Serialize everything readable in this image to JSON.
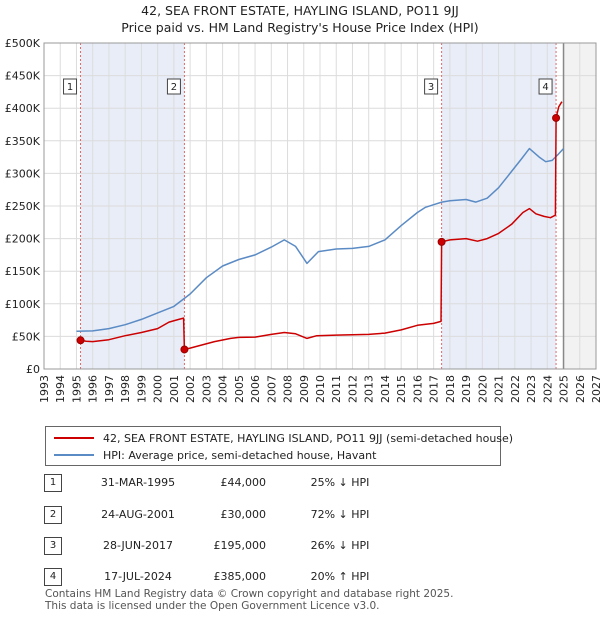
{
  "title_line1": "42, SEA FRONT ESTATE, HAYLING ISLAND, PO11 9JJ",
  "title_line2": "Price paid vs. HM Land Registry's House Price Index (HPI)",
  "legend": {
    "property_label": "42, SEA FRONT ESTATE, HAYLING ISLAND, PO11 9JJ (semi-detached house)",
    "hpi_label": "HPI: Average price, semi-detached house, Havant"
  },
  "colors": {
    "property": "#cc0000",
    "hpi": "#5b8bc4",
    "shade": "#e8edf8",
    "vline": "#e06a6a"
  },
  "sales": [
    {
      "id": "1",
      "date": "31-MAR-1995",
      "price": "£44,000",
      "hpi": "25% ↓ HPI"
    },
    {
      "id": "2",
      "date": "24-AUG-2001",
      "price": "£30,000",
      "hpi": "72% ↓ HPI"
    },
    {
      "id": "3",
      "date": "28-JUN-2017",
      "price": "£195,000",
      "hpi": "26% ↓ HPI"
    },
    {
      "id": "4",
      "date": "17-JUL-2024",
      "price": "£385,000",
      "hpi": "20% ↑ HPI"
    }
  ],
  "footer_line1": "Contains HM Land Registry data © Crown copyright and database right 2025.",
  "footer_line2": "This data is licensed under the Open Government Licence v3.0.",
  "chart_data": {
    "type": "line",
    "title": "42, SEA FRONT ESTATE, HAYLING ISLAND, PO11 9JJ — Price paid vs. HM Land Registry's House Price Index (HPI)",
    "xlim": [
      1993,
      2027
    ],
    "ylim": [
      0,
      500000
    ],
    "x_ticks": [
      1993,
      1994,
      1995,
      1996,
      1997,
      1998,
      1999,
      2000,
      2001,
      2002,
      2003,
      2004,
      2005,
      2006,
      2007,
      2008,
      2009,
      2010,
      2011,
      2012,
      2013,
      2014,
      2015,
      2016,
      2017,
      2018,
      2019,
      2020,
      2021,
      2022,
      2023,
      2024,
      2025,
      2026,
      2027
    ],
    "y_ticks": [
      {
        "value": 0,
        "label": "£0"
      },
      {
        "value": 50000,
        "label": "£50K"
      },
      {
        "value": 100000,
        "label": "£100K"
      },
      {
        "value": 150000,
        "label": "£150K"
      },
      {
        "value": 200000,
        "label": "£200K"
      },
      {
        "value": 250000,
        "label": "£250K"
      },
      {
        "value": 300000,
        "label": "£300K"
      },
      {
        "value": 350000,
        "label": "£350K"
      },
      {
        "value": 400000,
        "label": "£400K"
      },
      {
        "value": 450000,
        "label": "£450K"
      },
      {
        "value": 500000,
        "label": "£500K"
      }
    ],
    "shaded_ranges": [
      [
        1995.25,
        2001.65
      ],
      [
        2017.49,
        2024.54
      ]
    ],
    "data_end_x": 2025.0,
    "sale_markers": [
      {
        "id": "1",
        "x": 1995.25,
        "y": 44000
      },
      {
        "id": "2",
        "x": 2001.65,
        "y": 30000
      },
      {
        "id": "3",
        "x": 2017.49,
        "y": 195000
      },
      {
        "id": "4",
        "x": 2024.54,
        "y": 385000
      }
    ],
    "series": [
      {
        "name": "42, SEA FRONT ESTATE, HAYLING ISLAND, PO11 9JJ (semi-detached house)",
        "color": "#cc0000",
        "points": [
          [
            1995.25,
            44000
          ],
          [
            1995.6,
            42500
          ],
          [
            1996,
            42000
          ],
          [
            1997,
            45000
          ],
          [
            1998,
            51000
          ],
          [
            1999,
            56000
          ],
          [
            2000,
            62000
          ],
          [
            2000.7,
            72000
          ],
          [
            2001.3,
            76000
          ],
          [
            2001.6,
            78000
          ],
          [
            2001.65,
            30000
          ],
          [
            2002,
            32000
          ],
          [
            2002.6,
            36000
          ],
          [
            2003.5,
            42000
          ],
          [
            2004.5,
            47000
          ],
          [
            2005,
            48500
          ],
          [
            2006,
            49000
          ],
          [
            2007,
            53000
          ],
          [
            2007.8,
            56000
          ],
          [
            2008.5,
            54000
          ],
          [
            2009.2,
            47000
          ],
          [
            2009.8,
            51000
          ],
          [
            2011,
            52000
          ],
          [
            2012,
            52500
          ],
          [
            2013,
            53000
          ],
          [
            2014,
            55000
          ],
          [
            2015,
            60000
          ],
          [
            2016,
            67000
          ],
          [
            2017,
            70000
          ],
          [
            2017.45,
            73000
          ],
          [
            2017.49,
            195000
          ],
          [
            2018,
            198000
          ],
          [
            2019,
            200000
          ],
          [
            2019.7,
            196000
          ],
          [
            2020.3,
            200000
          ],
          [
            2021,
            208000
          ],
          [
            2021.8,
            222000
          ],
          [
            2022.5,
            240000
          ],
          [
            2022.9,
            246000
          ],
          [
            2023.3,
            238000
          ],
          [
            2023.8,
            234000
          ],
          [
            2024.2,
            232000
          ],
          [
            2024.5,
            236000
          ],
          [
            2024.54,
            385000
          ],
          [
            2024.7,
            402000
          ],
          [
            2024.9,
            410000
          ]
        ]
      },
      {
        "name": "HPI: Average price, semi-detached house, Havant",
        "color": "#5b8bc4",
        "points": [
          [
            1995,
            58000
          ],
          [
            1996,
            58500
          ],
          [
            1997,
            62000
          ],
          [
            1998,
            68000
          ],
          [
            1999,
            76000
          ],
          [
            2000,
            86000
          ],
          [
            2001,
            96000
          ],
          [
            2002,
            115000
          ],
          [
            2003,
            140000
          ],
          [
            2004,
            158000
          ],
          [
            2005,
            168000
          ],
          [
            2006,
            175000
          ],
          [
            2007,
            187000
          ],
          [
            2007.8,
            198000
          ],
          [
            2008.5,
            188000
          ],
          [
            2009.2,
            162000
          ],
          [
            2009.9,
            180000
          ],
          [
            2011,
            184000
          ],
          [
            2012,
            185000
          ],
          [
            2013,
            188000
          ],
          [
            2014,
            198000
          ],
          [
            2015,
            220000
          ],
          [
            2016,
            240000
          ],
          [
            2016.5,
            248000
          ],
          [
            2017,
            252000
          ],
          [
            2017.5,
            256000
          ],
          [
            2018,
            258000
          ],
          [
            2019,
            260000
          ],
          [
            2019.6,
            256000
          ],
          [
            2020.3,
            262000
          ],
          [
            2021,
            278000
          ],
          [
            2021.7,
            300000
          ],
          [
            2022.4,
            322000
          ],
          [
            2022.9,
            338000
          ],
          [
            2023.5,
            325000
          ],
          [
            2023.9,
            318000
          ],
          [
            2024.3,
            320000
          ],
          [
            2024.7,
            330000
          ],
          [
            2025.0,
            338000
          ]
        ]
      }
    ]
  }
}
